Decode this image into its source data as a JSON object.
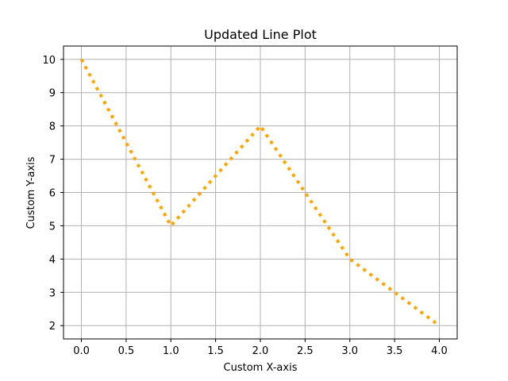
{
  "chart_data": {
    "type": "line",
    "title": "Updated Line Plot",
    "xlabel": "Custom X-axis",
    "ylabel": "Custom Y-axis",
    "x": [
      0,
      1,
      2,
      3,
      4
    ],
    "series": [
      {
        "values": [
          10,
          5,
          8,
          4,
          2
        ],
        "color": "#ffa500",
        "line_style": "dotted"
      }
    ],
    "xlim": [
      -0.2,
      4.2
    ],
    "ylim": [
      1.6,
      10.4
    ],
    "x_ticks": [
      0.0,
      0.5,
      1.0,
      1.5,
      2.0,
      2.5,
      3.0,
      3.5,
      4.0
    ],
    "x_tick_labels": [
      "0.0",
      "0.5",
      "1.0",
      "1.5",
      "2.0",
      "2.5",
      "3.0",
      "3.5",
      "4.0"
    ],
    "y_ticks": [
      2,
      3,
      4,
      5,
      6,
      7,
      8,
      9,
      10
    ],
    "y_tick_labels": [
      "2",
      "3",
      "4",
      "5",
      "6",
      "7",
      "8",
      "9",
      "10"
    ],
    "grid": true,
    "grid_color": "#b0b0b0"
  }
}
